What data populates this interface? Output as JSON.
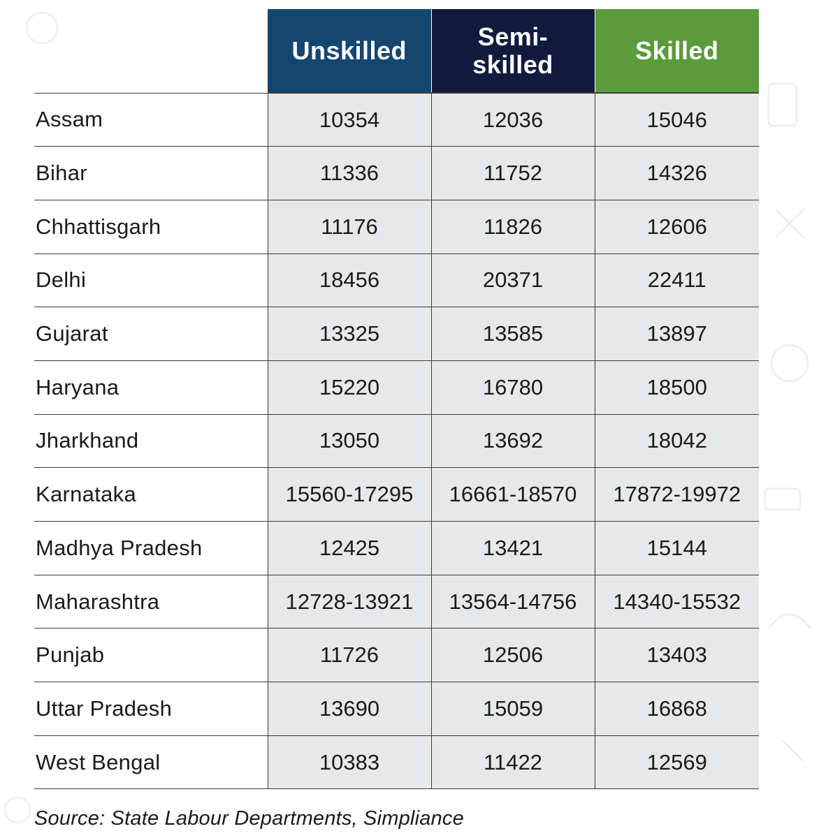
{
  "chart_data": {
    "type": "table",
    "columns": [
      "Unskilled",
      "Semi-\nskilled",
      "Skilled"
    ],
    "column_colors": [
      "#144670",
      "#101b3e",
      "#5a9b3a"
    ],
    "rows": [
      {
        "state": "Assam",
        "values": [
          "10354",
          "12036",
          "15046"
        ]
      },
      {
        "state": "Bihar",
        "values": [
          "11336",
          "11752",
          "14326"
        ]
      },
      {
        "state": "Chhattisgarh",
        "values": [
          "11176",
          "11826",
          "12606"
        ]
      },
      {
        "state": "Delhi",
        "values": [
          "18456",
          "20371",
          "22411"
        ]
      },
      {
        "state": "Gujarat",
        "values": [
          "13325",
          "13585",
          "13897"
        ]
      },
      {
        "state": "Haryana",
        "values": [
          "15220",
          "16780",
          "18500"
        ]
      },
      {
        "state": "Jharkhand",
        "values": [
          "13050",
          "13692",
          "18042"
        ]
      },
      {
        "state": "Karnataka",
        "values": [
          "15560-17295",
          "16661-18570",
          "17872-19972"
        ]
      },
      {
        "state": "Madhya Pradesh",
        "values": [
          "12425",
          "13421",
          "15144"
        ]
      },
      {
        "state": "Maharashtra",
        "values": [
          "12728-13921",
          "13564-14756",
          "14340-15532"
        ]
      },
      {
        "state": "Punjab",
        "values": [
          "11726",
          "12506",
          "13403"
        ]
      },
      {
        "state": "Uttar Pradesh",
        "values": [
          "13690",
          "15059",
          "16868"
        ]
      },
      {
        "state": "West Bengal",
        "values": [
          "10383",
          "11422",
          "12569"
        ]
      }
    ],
    "source": "Source: State Labour Departments, Simpliance"
  }
}
